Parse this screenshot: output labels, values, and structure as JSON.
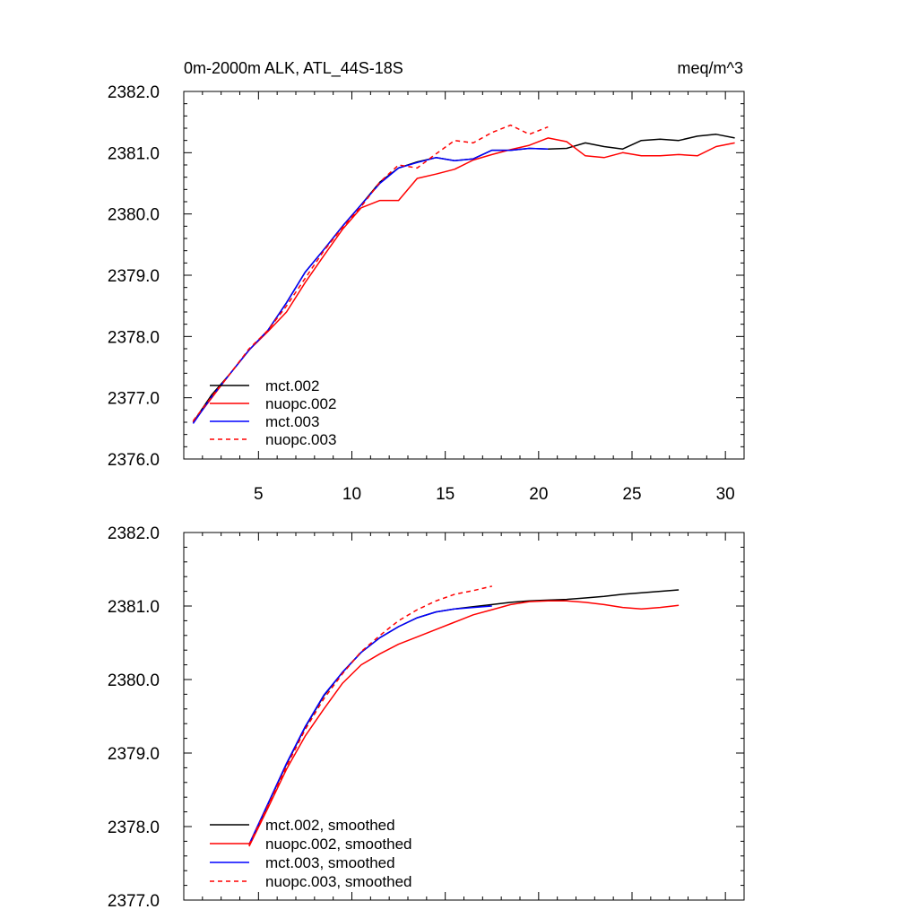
{
  "chart_data": [
    {
      "type": "line",
      "title": "0m-2000m ALK, ATL_44S-18S",
      "units": "meq/m^3",
      "xlabel": "",
      "ylabel": "",
      "xlim": [
        1,
        31
      ],
      "ylim": [
        2376.0,
        2382.0
      ],
      "xticks": [
        "5",
        "10",
        "15",
        "20",
        "25",
        "30"
      ],
      "yticks": [
        "2376.0",
        "2377.0",
        "2378.0",
        "2379.0",
        "2380.0",
        "2381.0",
        "2382.0"
      ],
      "legend_position": "bottom-left",
      "series": [
        {
          "name": "mct.002",
          "color": "#000000",
          "dash": "solid",
          "x": [
            1.5,
            2.5,
            3.5,
            4.5,
            5.5,
            6.5,
            7.5,
            8.5,
            9.5,
            10.5,
            11.5,
            12.5,
            13.5,
            14.5,
            15.5,
            16.5,
            17.5,
            18.5,
            19.5,
            20.5,
            21.5,
            22.5,
            23.5,
            24.5,
            25.5,
            26.5,
            27.5,
            28.5,
            29.5,
            30.5
          ],
          "y": [
            2376.6,
            2377.05,
            2377.4,
            2377.78,
            2378.1,
            2378.55,
            2379.05,
            2379.42,
            2379.8,
            2380.15,
            2380.52,
            2380.75,
            2380.85,
            2380.92,
            2380.87,
            2380.9,
            2381.04,
            2381.04,
            2381.07,
            2381.06,
            2381.07,
            2381.16,
            2381.1,
            2381.06,
            2381.2,
            2381.22,
            2381.2,
            2381.27,
            2381.3,
            2381.24
          ]
        },
        {
          "name": "nuopc.002",
          "color": "#ff0000",
          "dash": "solid",
          "x": [
            1.5,
            2.5,
            3.5,
            4.5,
            5.5,
            6.5,
            7.5,
            8.5,
            9.5,
            10.5,
            11.5,
            12.5,
            13.5,
            14.5,
            15.5,
            16.5,
            17.5,
            18.5,
            19.5,
            20.5,
            21.5,
            22.5,
            23.5,
            24.5,
            25.5,
            26.5,
            27.5,
            28.5,
            29.5,
            30.5
          ],
          "y": [
            2376.6,
            2377.0,
            2377.4,
            2377.78,
            2378.08,
            2378.4,
            2378.88,
            2379.32,
            2379.75,
            2380.1,
            2380.22,
            2380.22,
            2380.58,
            2380.65,
            2380.73,
            2380.88,
            2380.97,
            2381.05,
            2381.12,
            2381.24,
            2381.18,
            2380.95,
            2380.92,
            2381.0,
            2380.95,
            2380.95,
            2380.97,
            2380.95,
            2381.1,
            2381.16
          ]
        },
        {
          "name": "mct.003",
          "color": "#0000ff",
          "dash": "solid",
          "x": [
            1.5,
            2.5,
            3.5,
            4.5,
            5.5,
            6.5,
            7.5,
            8.5,
            9.5,
            10.5,
            11.5,
            12.5,
            13.5,
            14.5,
            15.5,
            16.5,
            17.5,
            18.5,
            19.5,
            20.5
          ],
          "y": [
            2376.58,
            2377.02,
            2377.4,
            2377.78,
            2378.1,
            2378.55,
            2379.05,
            2379.42,
            2379.8,
            2380.15,
            2380.5,
            2380.75,
            2380.84,
            2380.92,
            2380.87,
            2380.9,
            2381.04,
            2381.04,
            2381.07,
            2381.06
          ]
        },
        {
          "name": "nuopc.003",
          "color": "#ff0000",
          "dash": "dashed",
          "x": [
            1.5,
            2.5,
            3.5,
            4.5,
            5.5,
            6.5,
            7.5,
            8.5,
            9.5,
            10.5,
            11.5,
            12.5,
            13.5,
            14.5,
            15.5,
            16.5,
            17.5,
            18.5,
            19.5,
            20.5
          ],
          "y": [
            2376.62,
            2377.02,
            2377.4,
            2377.8,
            2378.1,
            2378.5,
            2378.95,
            2379.4,
            2379.78,
            2380.12,
            2380.52,
            2380.8,
            2380.75,
            2380.98,
            2381.2,
            2381.16,
            2381.33,
            2381.45,
            2381.3,
            2381.42
          ]
        }
      ]
    },
    {
      "type": "line",
      "title": "",
      "xlabel": "",
      "ylabel": "",
      "xlim": [
        1,
        31
      ],
      "ylim": [
        2377.0,
        2382.0
      ],
      "xticks": [],
      "yticks": [
        "2377.0",
        "2378.0",
        "2379.0",
        "2380.0",
        "2381.0",
        "2382.0"
      ],
      "legend_position": "bottom-left",
      "series": [
        {
          "name": "mct.002, smoothed",
          "color": "#000000",
          "dash": "solid",
          "x": [
            4.5,
            5.5,
            6.5,
            7.5,
            8.5,
            9.5,
            10.5,
            11.5,
            12.5,
            13.5,
            14.5,
            15.5,
            16.5,
            17.5,
            18.5,
            19.5,
            20.5,
            21.5,
            22.5,
            23.5,
            24.5,
            25.5,
            26.5,
            27.5
          ],
          "y": [
            2377.75,
            2378.3,
            2378.85,
            2379.35,
            2379.78,
            2380.1,
            2380.37,
            2380.57,
            2380.72,
            2380.84,
            2380.92,
            2380.96,
            2380.99,
            2381.02,
            2381.05,
            2381.07,
            2381.08,
            2381.09,
            2381.11,
            2381.13,
            2381.16,
            2381.18,
            2381.2,
            2381.22
          ]
        },
        {
          "name": "nuopc.002, smoothed",
          "color": "#ff0000",
          "dash": "solid",
          "x": [
            4.5,
            5.5,
            6.5,
            7.5,
            8.5,
            9.5,
            10.5,
            11.5,
            12.5,
            13.5,
            14.5,
            15.5,
            16.5,
            17.5,
            18.5,
            19.5,
            20.5,
            21.5,
            22.5,
            23.5,
            24.5,
            25.5,
            26.5,
            27.5
          ],
          "y": [
            2377.73,
            2378.25,
            2378.78,
            2379.23,
            2379.6,
            2379.95,
            2380.2,
            2380.35,
            2380.48,
            2380.58,
            2380.68,
            2380.78,
            2380.88,
            2380.95,
            2381.02,
            2381.06,
            2381.07,
            2381.07,
            2381.05,
            2381.02,
            2380.98,
            2380.96,
            2380.98,
            2381.01
          ]
        },
        {
          "name": "mct.003, smoothed",
          "color": "#0000ff",
          "dash": "solid",
          "x": [
            4.5,
            5.5,
            6.5,
            7.5,
            8.5,
            9.5,
            10.5,
            11.5,
            12.5,
            13.5,
            14.5,
            15.5,
            16.5,
            17.5
          ],
          "y": [
            2377.76,
            2378.31,
            2378.86,
            2379.36,
            2379.79,
            2380.1,
            2380.37,
            2380.57,
            2380.72,
            2380.84,
            2380.92,
            2380.96,
            2380.98,
            2381.0
          ]
        },
        {
          "name": "nuopc.003, smoothed",
          "color": "#ff0000",
          "dash": "dashed",
          "x": [
            4.5,
            5.5,
            6.5,
            7.5,
            8.5,
            9.5,
            10.5,
            11.5,
            12.5,
            13.5,
            14.5,
            15.5,
            16.5,
            17.5
          ],
          "y": [
            2377.75,
            2378.28,
            2378.82,
            2379.32,
            2379.74,
            2380.08,
            2380.38,
            2380.6,
            2380.8,
            2380.95,
            2381.07,
            2381.16,
            2381.21,
            2381.27
          ]
        }
      ]
    }
  ]
}
